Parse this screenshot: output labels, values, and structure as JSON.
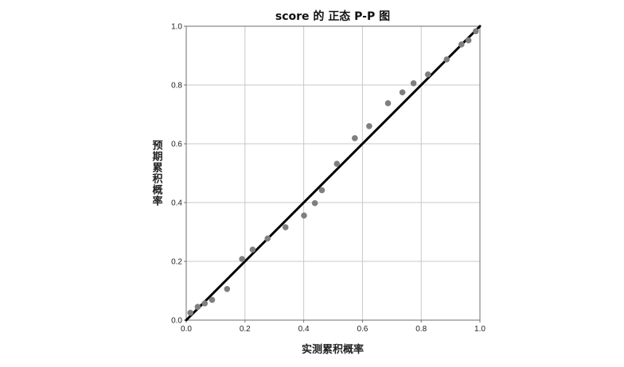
{
  "chart_data": {
    "type": "scatter",
    "title": "score 的 正态 P-P 图",
    "xlabel": "实测累积概率",
    "ylabel": "预期累积概率",
    "xlim": [
      0.0,
      1.0
    ],
    "ylim": [
      0.0,
      1.0
    ],
    "x_ticks": [
      "0.0",
      "0.2",
      "0.4",
      "0.6",
      "0.8",
      "1.0"
    ],
    "y_ticks": [
      "0.0",
      "0.2",
      "0.4",
      "0.6",
      "0.8",
      "1.0"
    ],
    "grid": true,
    "reference_line": {
      "from": [
        0.0,
        0.0
      ],
      "to": [
        1.0,
        1.0
      ]
    },
    "points": [
      {
        "x": 0.014,
        "y": 0.025
      },
      {
        "x": 0.039,
        "y": 0.045
      },
      {
        "x": 0.063,
        "y": 0.057
      },
      {
        "x": 0.088,
        "y": 0.069
      },
      {
        "x": 0.139,
        "y": 0.106
      },
      {
        "x": 0.19,
        "y": 0.208
      },
      {
        "x": 0.226,
        "y": 0.24
      },
      {
        "x": 0.277,
        "y": 0.278
      },
      {
        "x": 0.338,
        "y": 0.316
      },
      {
        "x": 0.401,
        "y": 0.356
      },
      {
        "x": 0.438,
        "y": 0.398
      },
      {
        "x": 0.462,
        "y": 0.442
      },
      {
        "x": 0.513,
        "y": 0.532
      },
      {
        "x": 0.574,
        "y": 0.619
      },
      {
        "x": 0.623,
        "y": 0.66
      },
      {
        "x": 0.687,
        "y": 0.738
      },
      {
        "x": 0.736,
        "y": 0.775
      },
      {
        "x": 0.774,
        "y": 0.806
      },
      {
        "x": 0.823,
        "y": 0.836
      },
      {
        "x": 0.887,
        "y": 0.887
      },
      {
        "x": 0.937,
        "y": 0.938
      },
      {
        "x": 0.961,
        "y": 0.952
      },
      {
        "x": 0.986,
        "y": 0.983
      }
    ],
    "colors": {
      "point": "#7f7f7f",
      "line": "#000000",
      "grid": "#c8c8c8",
      "frame": "#6e6e6e"
    }
  }
}
